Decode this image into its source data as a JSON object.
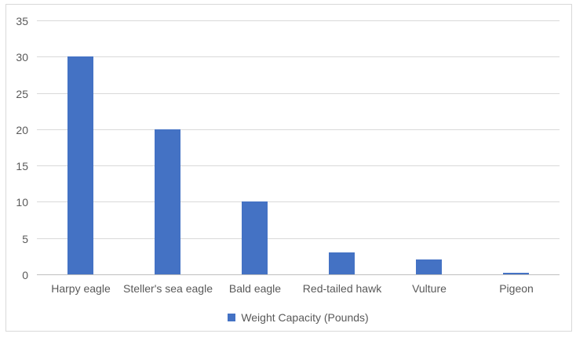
{
  "chart_data": {
    "type": "bar",
    "categories": [
      "Harpy eagle",
      "Steller's sea eagle",
      "Bald eagle",
      "Red-tailed hawk",
      "Vulture",
      "Pigeon"
    ],
    "values": [
      30,
      20,
      10,
      3,
      2,
      0.2
    ],
    "series_name": "Weight Capacity (Pounds)",
    "title": "",
    "xlabel": "",
    "ylabel": "",
    "ylim": [
      0,
      35
    ],
    "yticks": [
      0,
      5,
      10,
      15,
      20,
      25,
      30,
      35
    ],
    "grid": true,
    "legend_position": "bottom"
  },
  "legend": {
    "label": "Weight Capacity (Pounds)"
  },
  "colors": {
    "bar": "#4472C4",
    "gridline": "#D9D9D9",
    "axis_line": "#BFBFBF",
    "text": "#595959",
    "frame_border": "#D9D9D9",
    "background": "#FFFFFF"
  }
}
